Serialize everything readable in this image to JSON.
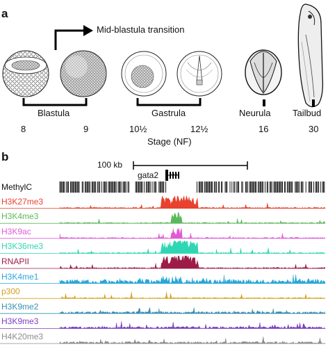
{
  "panel_a": {
    "letter": "a",
    "transition_label": "Mid-blastula transition",
    "groups": [
      {
        "label": "Blastula"
      },
      {
        "label": "Gastrula"
      },
      {
        "label": "Neurula"
      },
      {
        "label": "Tailbud"
      }
    ],
    "stage_numbers": [
      "8",
      "9",
      "10½",
      "12½",
      "16",
      "30"
    ],
    "axis_label": "Stage (NF)"
  },
  "panel_b": {
    "letter": "b",
    "scale_label": "100 kb",
    "gene_label": "gata2",
    "methyl_label": "MethylC",
    "tracks": [
      {
        "label": "H3K27me3",
        "color": "#e8412f",
        "peak": "strong",
        "seed": 11
      },
      {
        "label": "H3K4me3",
        "color": "#5cb85c",
        "peak": "medium",
        "seed": 23
      },
      {
        "label": "H3K9ac",
        "color": "#e05ad6",
        "peak": "medium",
        "seed": 37
      },
      {
        "label": "H3K36me3",
        "color": "#2fd6b4",
        "peak": "strong",
        "seed": 41
      },
      {
        "label": "RNAPII",
        "color": "#9c1c47",
        "peak": "strong",
        "seed": 53
      },
      {
        "label": "H3K4me1",
        "color": "#2aa7d6",
        "peak": "broad",
        "seed": 67
      },
      {
        "label": "p300",
        "color": "#d4a020",
        "peak": "sparse",
        "seed": 71
      },
      {
        "label": "H3K9me2",
        "color": "#3a8fb0",
        "peak": "noise",
        "seed": 83
      },
      {
        "label": "H3K9me3",
        "color": "#7a3fbf",
        "peak": "noise",
        "seed": 97
      },
      {
        "label": "H4K20me3",
        "color": "#8c8c8c",
        "peak": "noise",
        "seed": 101
      }
    ]
  }
}
